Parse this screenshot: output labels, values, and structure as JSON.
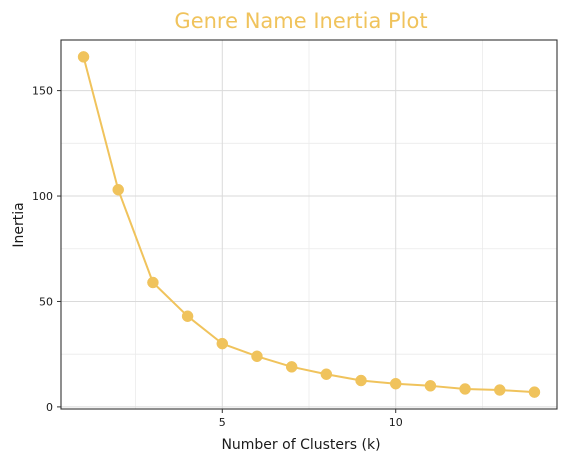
{
  "colors": {
    "accent": "#F0C35C",
    "title": "#F0C35C",
    "frame": "#333333",
    "grid_major": "#DADADA",
    "grid_minor": "#EBEBEB"
  },
  "chart_data": {
    "type": "line",
    "title": "Genre Name Inertia Plot",
    "xlabel": "Number of Clusters (k)",
    "ylabel": "Inertia",
    "x": [
      1,
      2,
      3,
      4,
      5,
      6,
      7,
      8,
      9,
      10,
      11,
      12,
      13,
      14
    ],
    "series": [
      {
        "values": [
          166,
          103,
          59,
          43,
          30,
          24,
          19,
          15.5,
          12.5,
          11,
          10,
          8.5,
          8,
          7
        ]
      }
    ],
    "xlim": [
      0.35,
      14.65
    ],
    "ylim": [
      -1,
      174
    ],
    "xticks": [
      5,
      10
    ],
    "xtick_labels": [
      "5",
      "10"
    ],
    "x_minor_ticks": [
      2.5,
      7.5,
      12.5
    ],
    "yticks": [
      0,
      50,
      100,
      150
    ],
    "ytick_labels": [
      "0",
      "50",
      "100",
      "150"
    ],
    "y_minor_ticks": [
      25,
      75,
      125
    ],
    "grid": true,
    "markers": true
  }
}
